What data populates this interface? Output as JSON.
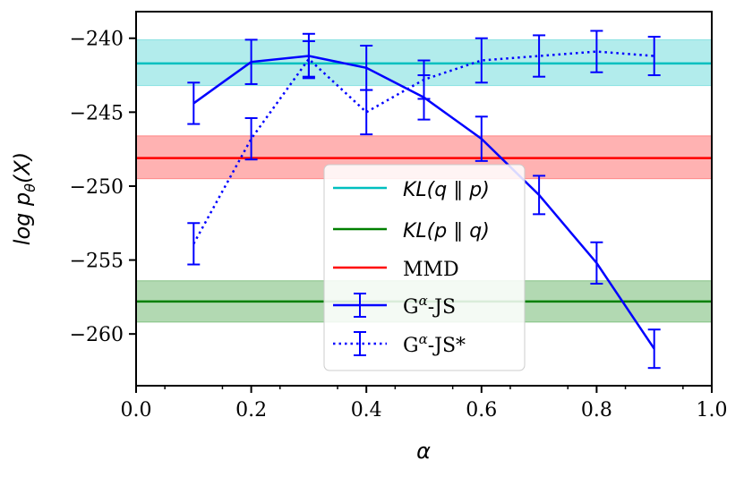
{
  "chart_data": {
    "type": "line",
    "title": "",
    "xlabel": "α",
    "ylabel": "log p_θ(X)",
    "xlim": [
      0.0,
      1.0
    ],
    "ylim": [
      -263.5,
      -238.2
    ],
    "xticks": [
      0.0,
      0.2,
      0.4,
      0.6,
      0.8,
      1.0
    ],
    "xtick_labels": [
      "0.0",
      "0.2",
      "0.4",
      "0.6",
      "0.8",
      "1.0"
    ],
    "yticks": [
      -240,
      -245,
      -250,
      -255,
      -260
    ],
    "ytick_labels": [
      "−240",
      "−245",
      "−250",
      "−255",
      "−260"
    ],
    "grid": false,
    "legend_position": "center",
    "bands": [
      {
        "name": "KL(q ∥ p)",
        "label_pre": "KL(q",
        "label_mid": "∥",
        "label_post": "p)",
        "mean": -241.7,
        "lower": -243.2,
        "upper": -240.1,
        "color": "#00bfbf",
        "fill": "#00bfbf"
      },
      {
        "name": "KL(p ∥ q)",
        "label_pre": "KL(p",
        "label_mid": "∥",
        "label_post": "q)",
        "mean": -257.8,
        "lower": -259.2,
        "upper": -256.4,
        "color": "#008000",
        "fill": "#008000"
      },
      {
        "name": "MMD",
        "label": "MMD",
        "mean": -248.1,
        "lower": -249.5,
        "upper": -246.6,
        "color": "#ff0000",
        "fill": "#ff0000"
      }
    ],
    "series": [
      {
        "name": "Gα-JS",
        "label_base": "G",
        "label_sup": "α",
        "label_suffix": "-JS",
        "style": "solid",
        "color": "#0000ff",
        "x": [
          0.1,
          0.2,
          0.3,
          0.4,
          0.5,
          0.6,
          0.7,
          0.8,
          0.9
        ],
        "y": [
          -244.4,
          -241.6,
          -241.2,
          -242.0,
          -244.0,
          -246.8,
          -250.6,
          -255.2,
          -261.0
        ],
        "err": [
          1.4,
          1.5,
          1.5,
          1.5,
          1.5,
          1.5,
          1.3,
          1.4,
          1.3
        ]
      },
      {
        "name": "Gα-JS*",
        "label_base": "G",
        "label_sup": "α",
        "label_suffix": "-JS*",
        "style": "dotted",
        "color": "#0000ff",
        "x": [
          0.1,
          0.2,
          0.3,
          0.4,
          0.5,
          0.6,
          0.7,
          0.8,
          0.9
        ],
        "y": [
          -253.9,
          -246.8,
          -241.4,
          -245.0,
          -242.8,
          -241.5,
          -241.2,
          -240.9,
          -241.2
        ],
        "err": [
          1.4,
          1.4,
          1.2,
          1.5,
          1.3,
          1.5,
          1.4,
          1.4,
          1.3
        ]
      }
    ]
  }
}
